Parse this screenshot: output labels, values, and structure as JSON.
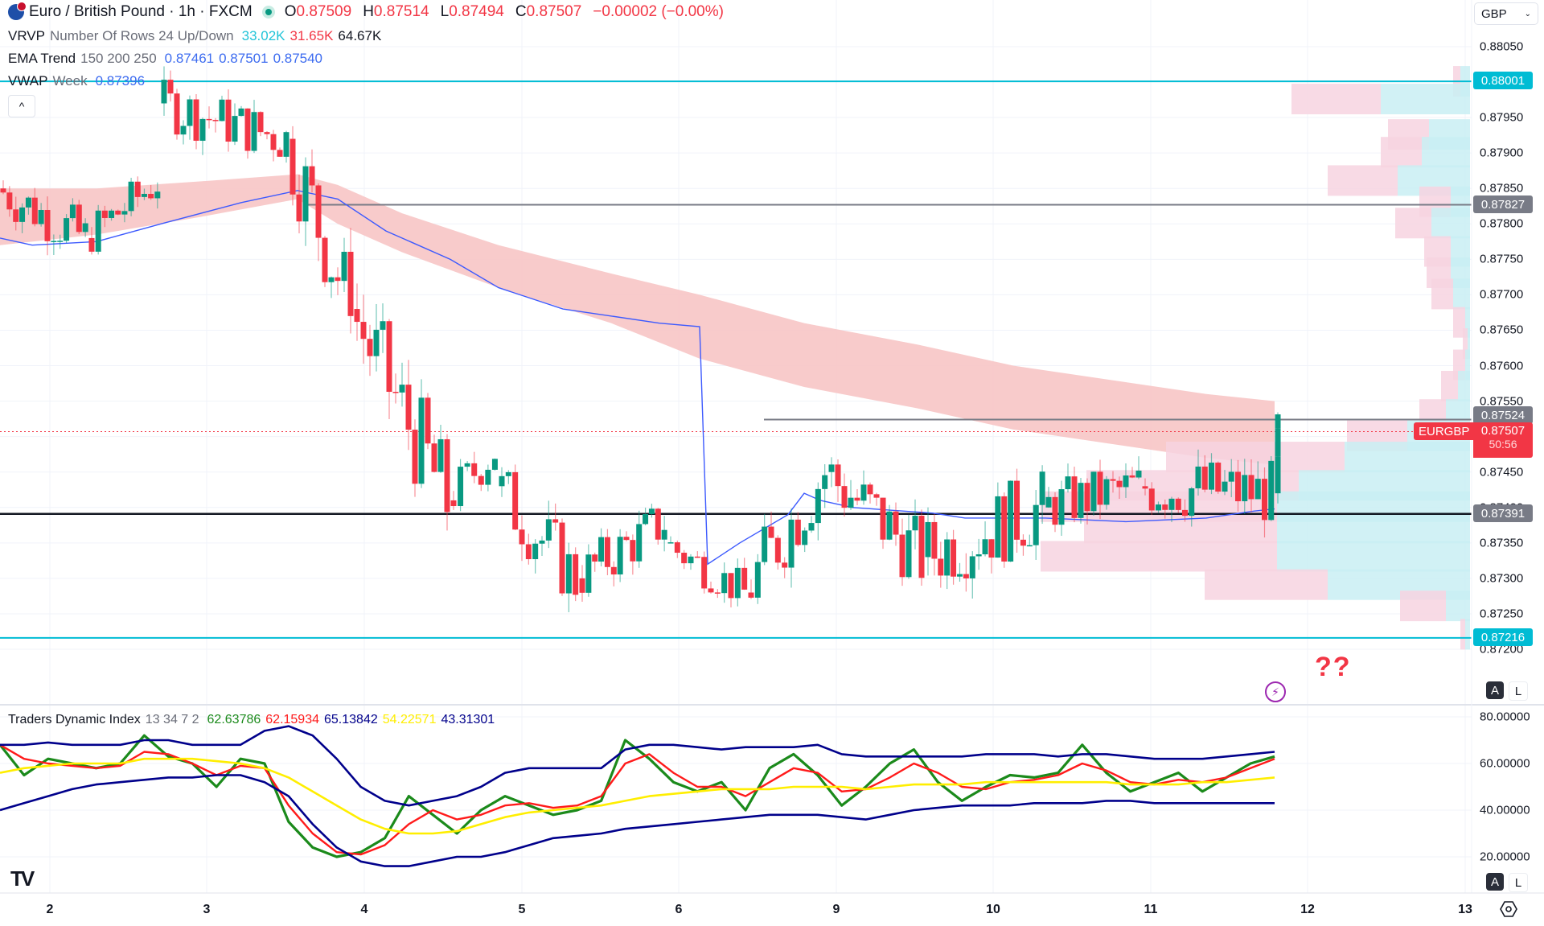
{
  "header": {
    "symbol_title": "Euro / British Pound · 1h · FXCM",
    "ohlc": {
      "o_label": "O",
      "o": "0.87509",
      "h_label": "H",
      "h": "0.87514",
      "l_label": "L",
      "l": "0.87494",
      "c_label": "C",
      "c": "0.87507",
      "change": "−0.00002 (−0.00%)"
    },
    "currency": "GBP"
  },
  "indicators": {
    "vrvp": {
      "name": "VRVP",
      "params": "Number Of Rows 24 Up/Down",
      "up": "33.02K",
      "down": "31.65K",
      "total": "64.67K"
    },
    "ema": {
      "name": "EMA Trend",
      "params": "150 200 250",
      "v1": "0.87461",
      "v2": "0.87501",
      "v3": "0.87540"
    },
    "vwap": {
      "name": "VWAP",
      "params": "Week",
      "value": "0.87396"
    },
    "tdi": {
      "name": "Traders Dynamic Index",
      "params": "13 34 7 2",
      "v1": "62.63786",
      "v2": "62.15934",
      "v3": "65.13842",
      "v4": "54.22571",
      "v5": "43.31301"
    }
  },
  "price_axis": {
    "labels": [
      "0.88050",
      "0.87950",
      "0.87900",
      "0.87850",
      "0.87800",
      "0.87750",
      "0.87700",
      "0.87650",
      "0.87600",
      "0.87550",
      "0.87450",
      "0.87400",
      "0.87350",
      "0.87300",
      "0.87250",
      "0.87200"
    ],
    "tags": {
      "resistance_top": "0.88001",
      "level_upper": "0.87827",
      "level_mid": "0.87524",
      "last_price": "0.87507",
      "countdown": "50:56",
      "level_lower": "0.87391",
      "support_bottom": "0.87216"
    },
    "symbol_tag": "EURGBP"
  },
  "tdi_axis": {
    "labels": [
      "80.00000",
      "60.00000",
      "40.00000",
      "20.00000"
    ]
  },
  "time_axis": {
    "labels": [
      "2",
      "3",
      "4",
      "5",
      "6",
      "9",
      "10",
      "11",
      "12",
      "13"
    ]
  },
  "annotations": {
    "question_marks": "??"
  },
  "controls": {
    "collapse": "^",
    "auto": "A",
    "log": "L"
  },
  "colors": {
    "up": "#089981",
    "down": "#f23645",
    "ema_band": "#f7c5c5",
    "vwap": "#3d5afe",
    "cyan_line": "#00bcd4",
    "gray_line": "#787b86",
    "black_line": "#131722",
    "vp_up": "#c9eff3",
    "vp_down": "#f7d3e0",
    "tdi_rsi": "#1b8a1b",
    "tdi_signal": "#ff1a1a",
    "tdi_band": "#00008b",
    "tdi_mid": "#ffee00"
  },
  "chart_data": [
    {
      "type": "candlestick",
      "title": "Euro / British Pound · 1h · FXCM",
      "xlabel": "",
      "ylabel": "GBP",
      "x_ticks": [
        "2",
        "3",
        "4",
        "5",
        "6",
        "9",
        "10",
        "11",
        "12",
        "13"
      ],
      "ylim": [
        0.8716,
        0.8809
      ],
      "horizontal_levels": [
        0.88001,
        0.87827,
        0.87524,
        0.87391,
        0.87216
      ],
      "last_price": 0.87507,
      "overlays": [
        "EMA Trend 150/200/250 band",
        "VWAP Week",
        "VRVP volume profile (24 rows)"
      ],
      "ohlc_approx": [
        {
          "day": "2",
          "o": 0.8785,
          "h": 0.8791,
          "l": 0.8774,
          "c": 0.8778
        },
        {
          "day": "2-3",
          "o": 0.8778,
          "h": 0.879,
          "l": 0.8776,
          "c": 0.8786
        },
        {
          "day": "3",
          "o": 0.8797,
          "h": 0.8801,
          "l": 0.8784,
          "c": 0.8792
        },
        {
          "day": "3-4",
          "o": 0.8792,
          "h": 0.8798,
          "l": 0.8767,
          "c": 0.8768
        },
        {
          "day": "4",
          "o": 0.8768,
          "h": 0.877,
          "l": 0.8737,
          "c": 0.8741
        },
        {
          "day": "4-5",
          "o": 0.8741,
          "h": 0.8754,
          "l": 0.8739,
          "c": 0.8748
        },
        {
          "day": "5",
          "o": 0.8743,
          "h": 0.8745,
          "l": 0.8722,
          "c": 0.873
        },
        {
          "day": "5-6",
          "o": 0.873,
          "h": 0.8741,
          "l": 0.8724,
          "c": 0.8738
        },
        {
          "day": "6",
          "o": 0.8735,
          "h": 0.8738,
          "l": 0.8725,
          "c": 0.8728
        },
        {
          "day": "6-9",
          "o": 0.8728,
          "h": 0.8752,
          "l": 0.8727,
          "c": 0.8745
        },
        {
          "day": "9",
          "o": 0.8745,
          "h": 0.8748,
          "l": 0.8724,
          "c": 0.8733
        },
        {
          "day": "9-10",
          "o": 0.8733,
          "h": 0.8747,
          "l": 0.8722,
          "c": 0.874
        },
        {
          "day": "10",
          "o": 0.874,
          "h": 0.8751,
          "l": 0.8734,
          "c": 0.8743
        },
        {
          "day": "11",
          "o": 0.8743,
          "h": 0.8749,
          "l": 0.8728,
          "c": 0.8742
        },
        {
          "day": "11-12",
          "o": 0.8742,
          "h": 0.8758,
          "l": 0.874,
          "c": 0.87507
        }
      ],
      "volume_profile_rows": [
        {
          "price": 0.88,
          "up": 0.4,
          "down": 0.3
        },
        {
          "price": 0.87975,
          "up": 3.7,
          "down": 3.7
        },
        {
          "price": 0.87925,
          "up": 1.7,
          "down": 1.7
        },
        {
          "price": 0.879,
          "up": 2.0,
          "down": 1.7
        },
        {
          "price": 0.8786,
          "up": 3.0,
          "down": 2.9
        },
        {
          "price": 0.8783,
          "up": 0.8,
          "down": 1.3
        },
        {
          "price": 0.878,
          "up": 1.6,
          "down": 1.5
        },
        {
          "price": 0.8776,
          "up": 0.8,
          "down": 1.1
        },
        {
          "price": 0.8773,
          "up": 0.8,
          "down": 1.0
        },
        {
          "price": 0.877,
          "up": 0.7,
          "down": 0.9
        },
        {
          "price": 0.8766,
          "up": 0.2,
          "down": 0.5
        },
        {
          "price": 0.8763,
          "up": 0.1,
          "down": 0.2
        },
        {
          "price": 0.876,
          "up": 0.2,
          "down": 0.5
        },
        {
          "price": 0.8757,
          "up": 0.5,
          "down": 0.7
        },
        {
          "price": 0.8753,
          "up": 1.0,
          "down": 1.1
        },
        {
          "price": 0.875,
          "up": 2.6,
          "down": 2.5
        },
        {
          "price": 0.8747,
          "up": 5.2,
          "down": 7.4
        },
        {
          "price": 0.8743,
          "up": 7.1,
          "down": 8.8
        },
        {
          "price": 0.874,
          "up": 8.0,
          "down": 9.8
        },
        {
          "price": 0.8737,
          "up": 8.0,
          "down": 8.0
        },
        {
          "price": 0.8733,
          "up": 8.0,
          "down": 9.8
        },
        {
          "price": 0.8729,
          "up": 5.9,
          "down": 5.1
        },
        {
          "price": 0.8726,
          "up": 1.0,
          "down": 1.9
        },
        {
          "price": 0.8722,
          "up": 0.2,
          "down": 0.2
        }
      ]
    },
    {
      "type": "line",
      "title": "Traders Dynamic Index 13 34 7 2",
      "ylim": [
        14,
        84
      ],
      "y_ticks": [
        80,
        60,
        40,
        20
      ],
      "x_ticks": [
        "2",
        "3",
        "4",
        "5",
        "6",
        "9",
        "10",
        "11",
        "12",
        "13"
      ],
      "series": [
        {
          "name": "RSI Price Line",
          "color": "#1b8a1b",
          "last": 62.63786,
          "values": [
            68,
            55,
            62,
            60,
            58,
            60,
            72,
            63,
            60,
            50,
            62,
            60,
            35,
            24,
            20,
            22,
            28,
            46,
            38,
            30,
            40,
            46,
            42,
            38,
            40,
            44,
            70,
            62,
            52,
            48,
            52,
            40,
            58,
            64,
            55,
            42,
            50,
            60,
            66,
            52,
            44,
            50,
            55,
            54,
            56,
            68,
            56,
            48,
            52,
            56,
            48,
            54,
            60,
            63
          ]
        },
        {
          "name": "Trade Signal Line",
          "color": "#ff1a1a",
          "last": 62.15934,
          "values": [
            68,
            62,
            60,
            59,
            58,
            59,
            65,
            64,
            60,
            55,
            59,
            58,
            42,
            30,
            22,
            21,
            25,
            34,
            40,
            36,
            38,
            42,
            43,
            41,
            42,
            46,
            60,
            64,
            56,
            50,
            50,
            46,
            52,
            58,
            56,
            48,
            49,
            54,
            60,
            56,
            50,
            49,
            52,
            53,
            55,
            60,
            57,
            52,
            51,
            53,
            52,
            54,
            58,
            62
          ]
        },
        {
          "name": "Upper Volatility Band",
          "color": "#00008b",
          "last": 65.13842,
          "values": [
            68,
            68,
            69,
            68,
            68,
            68,
            70,
            70,
            68,
            68,
            68,
            74,
            76,
            72,
            62,
            50,
            44,
            42,
            44,
            46,
            50,
            56,
            58,
            58,
            58,
            58,
            66,
            68,
            68,
            67,
            66,
            67,
            67,
            67,
            68,
            64,
            63,
            63,
            63,
            63,
            63,
            64,
            64,
            64,
            63,
            64,
            64,
            63,
            62,
            62,
            62,
            63,
            64,
            65
          ]
        },
        {
          "name": "Market Base Line",
          "color": "#ffee00",
          "last": 54.22571,
          "values": [
            56,
            58,
            59,
            60,
            60,
            60,
            62,
            62,
            62,
            61,
            60,
            58,
            54,
            48,
            42,
            36,
            32,
            30,
            30,
            31,
            34,
            37,
            39,
            40,
            41,
            42,
            44,
            46,
            47,
            48,
            49,
            49,
            49,
            50,
            50,
            50,
            49,
            50,
            51,
            51,
            51,
            52,
            52,
            52,
            52,
            52,
            52,
            51,
            51,
            51,
            52,
            52,
            53,
            54
          ]
        },
        {
          "name": "Lower Volatility Band",
          "color": "#00008b",
          "last": 43.31301,
          "values": [
            40,
            43,
            46,
            49,
            51,
            52,
            53,
            54,
            54,
            55,
            55,
            52,
            46,
            34,
            24,
            18,
            16,
            16,
            18,
            20,
            20,
            22,
            25,
            28,
            29,
            30,
            32,
            33,
            34,
            35,
            36,
            37,
            38,
            38,
            38,
            37,
            36,
            38,
            40,
            41,
            42,
            42,
            42,
            43,
            43,
            43,
            44,
            44,
            43,
            43,
            43,
            43,
            43,
            43
          ]
        }
      ]
    }
  ]
}
